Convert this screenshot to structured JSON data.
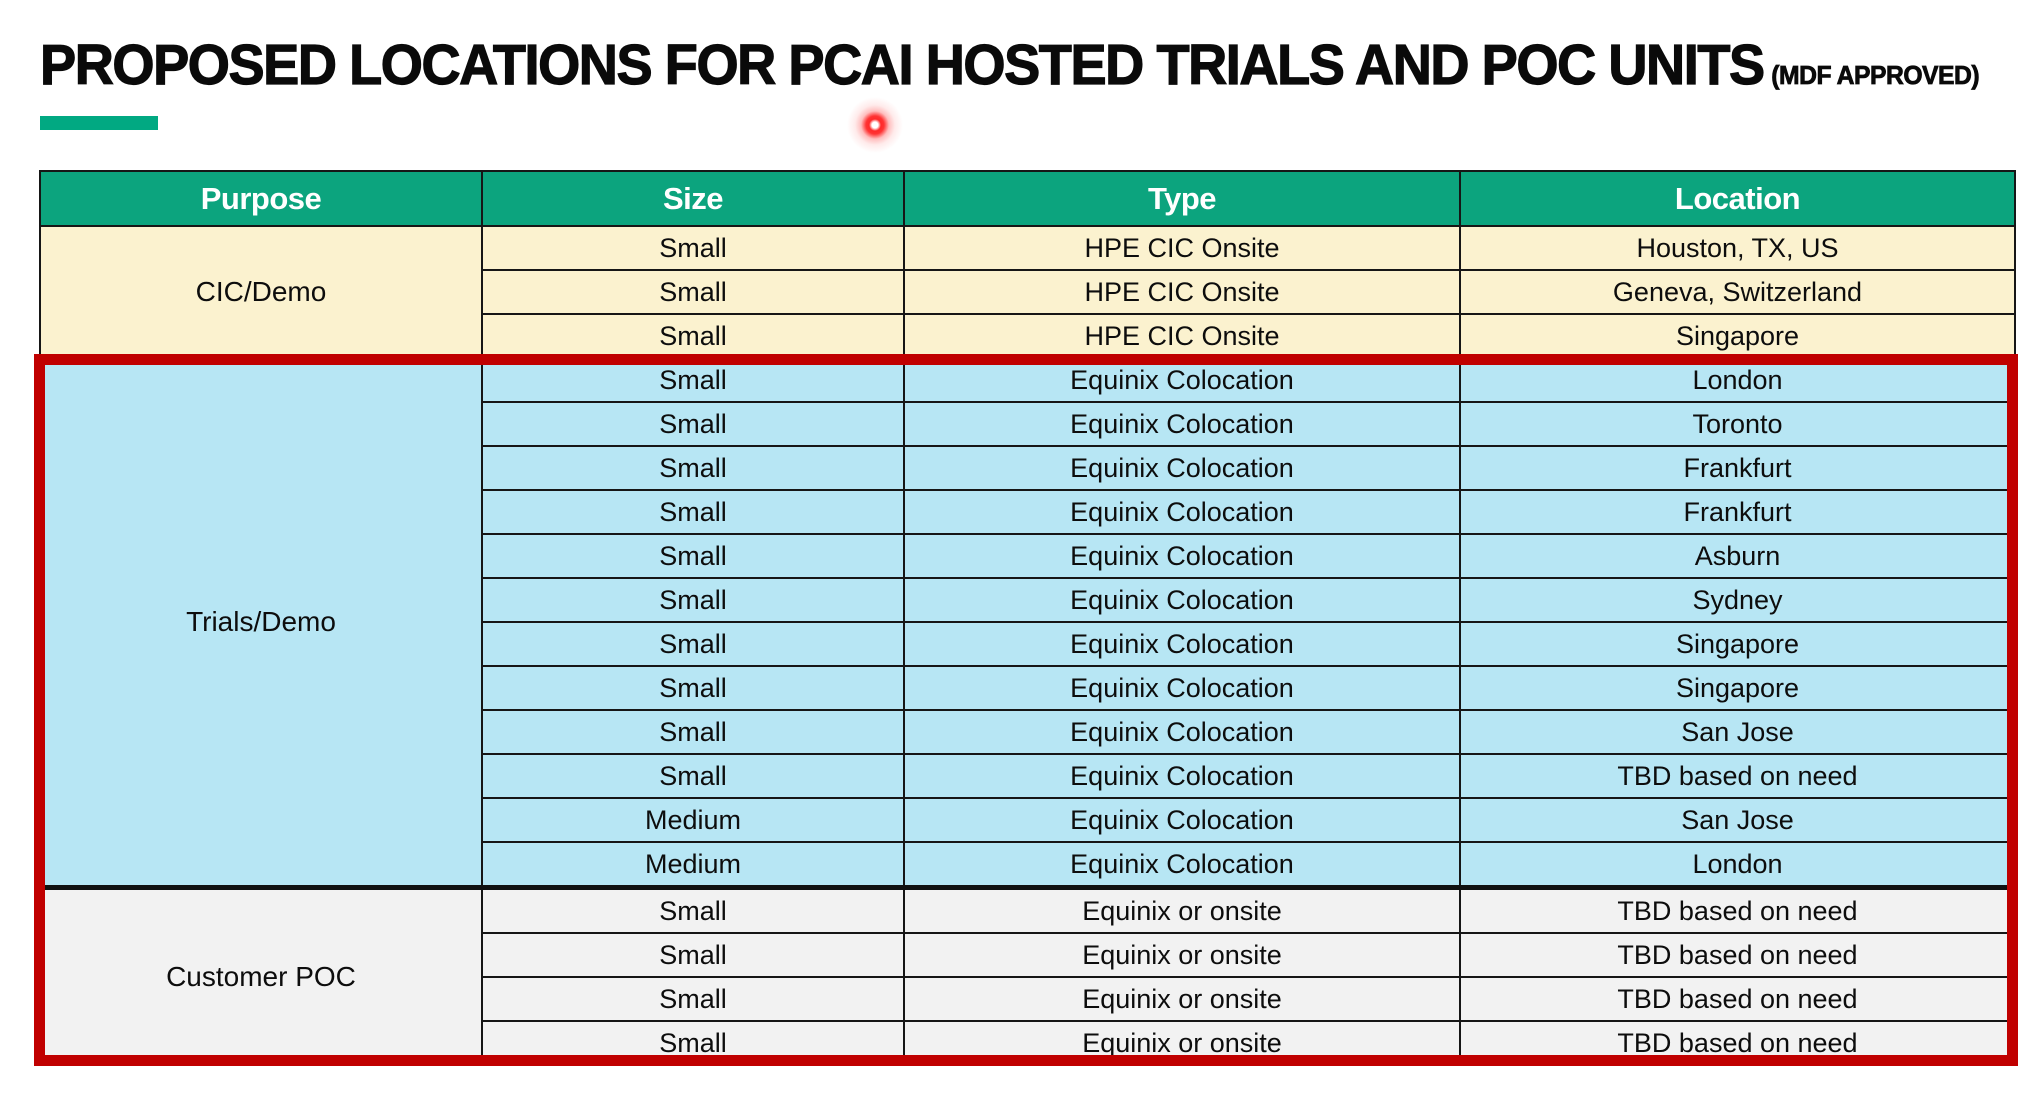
{
  "page": {
    "title": "PROPOSED LOCATIONS FOR PCAI HOSTED TRIALS AND POC UNITS",
    "title_suffix": "(MDF APPROVED)"
  },
  "colors": {
    "accent_bar": "#01A982",
    "header_bg": "#0CA47E",
    "header_text": "#FFFFFF",
    "cic_section_bg": "#FBF2CF",
    "trials_section_bg": "#B7E6F4",
    "poc_section_bg": "#F2F2F2",
    "highlight_border": "#C00000",
    "laser_dot": "#FF1E1E",
    "grid_line": "#161616"
  },
  "table": {
    "headers": [
      "Purpose",
      "Size",
      "Type",
      "Location"
    ],
    "sections": [
      {
        "purpose": "CIC/Demo",
        "bg": "#FBF2CF",
        "highlighted": false,
        "rows": [
          {
            "size": "Small",
            "type": "HPE CIC Onsite",
            "location": "Houston, TX, US"
          },
          {
            "size": "Small",
            "type": "HPE CIC Onsite",
            "location": "Geneva, Switzerland"
          },
          {
            "size": "Small",
            "type": "HPE CIC Onsite",
            "location": "Singapore"
          }
        ]
      },
      {
        "purpose": "Trials/Demo",
        "bg": "#B7E6F4",
        "highlighted": true,
        "rows": [
          {
            "size": "Small",
            "type": "Equinix Colocation",
            "location": "London"
          },
          {
            "size": "Small",
            "type": "Equinix Colocation",
            "location": "Toronto"
          },
          {
            "size": "Small",
            "type": "Equinix Colocation",
            "location": "Frankfurt"
          },
          {
            "size": "Small",
            "type": "Equinix Colocation",
            "location": "Frankfurt"
          },
          {
            "size": "Small",
            "type": "Equinix Colocation",
            "location": "Asburn"
          },
          {
            "size": "Small",
            "type": "Equinix Colocation",
            "location": "Sydney"
          },
          {
            "size": "Small",
            "type": "Equinix Colocation",
            "location": "Singapore"
          },
          {
            "size": "Small",
            "type": "Equinix Colocation",
            "location": "Singapore"
          },
          {
            "size": "Small",
            "type": "Equinix Colocation",
            "location": "San Jose"
          },
          {
            "size": "Small",
            "type": "Equinix Colocation",
            "location": "TBD based on need"
          },
          {
            "size": "Medium",
            "type": "Equinix Colocation",
            "location": "San Jose"
          },
          {
            "size": "Medium",
            "type": "Equinix Colocation",
            "location": "London"
          }
        ]
      },
      {
        "purpose": "Customer POC",
        "bg": "#F2F2F2",
        "highlighted": true,
        "rows": [
          {
            "size": "Small",
            "type": "Equinix or onsite",
            "location": "TBD based on need"
          },
          {
            "size": "Small",
            "type": "Equinix or onsite",
            "location": "TBD based on need"
          },
          {
            "size": "Small",
            "type": "Equinix or onsite",
            "location": "TBD based on need"
          },
          {
            "size": "Small",
            "type": "Equinix or onsite",
            "location": "TBD based on need"
          }
        ]
      }
    ]
  }
}
